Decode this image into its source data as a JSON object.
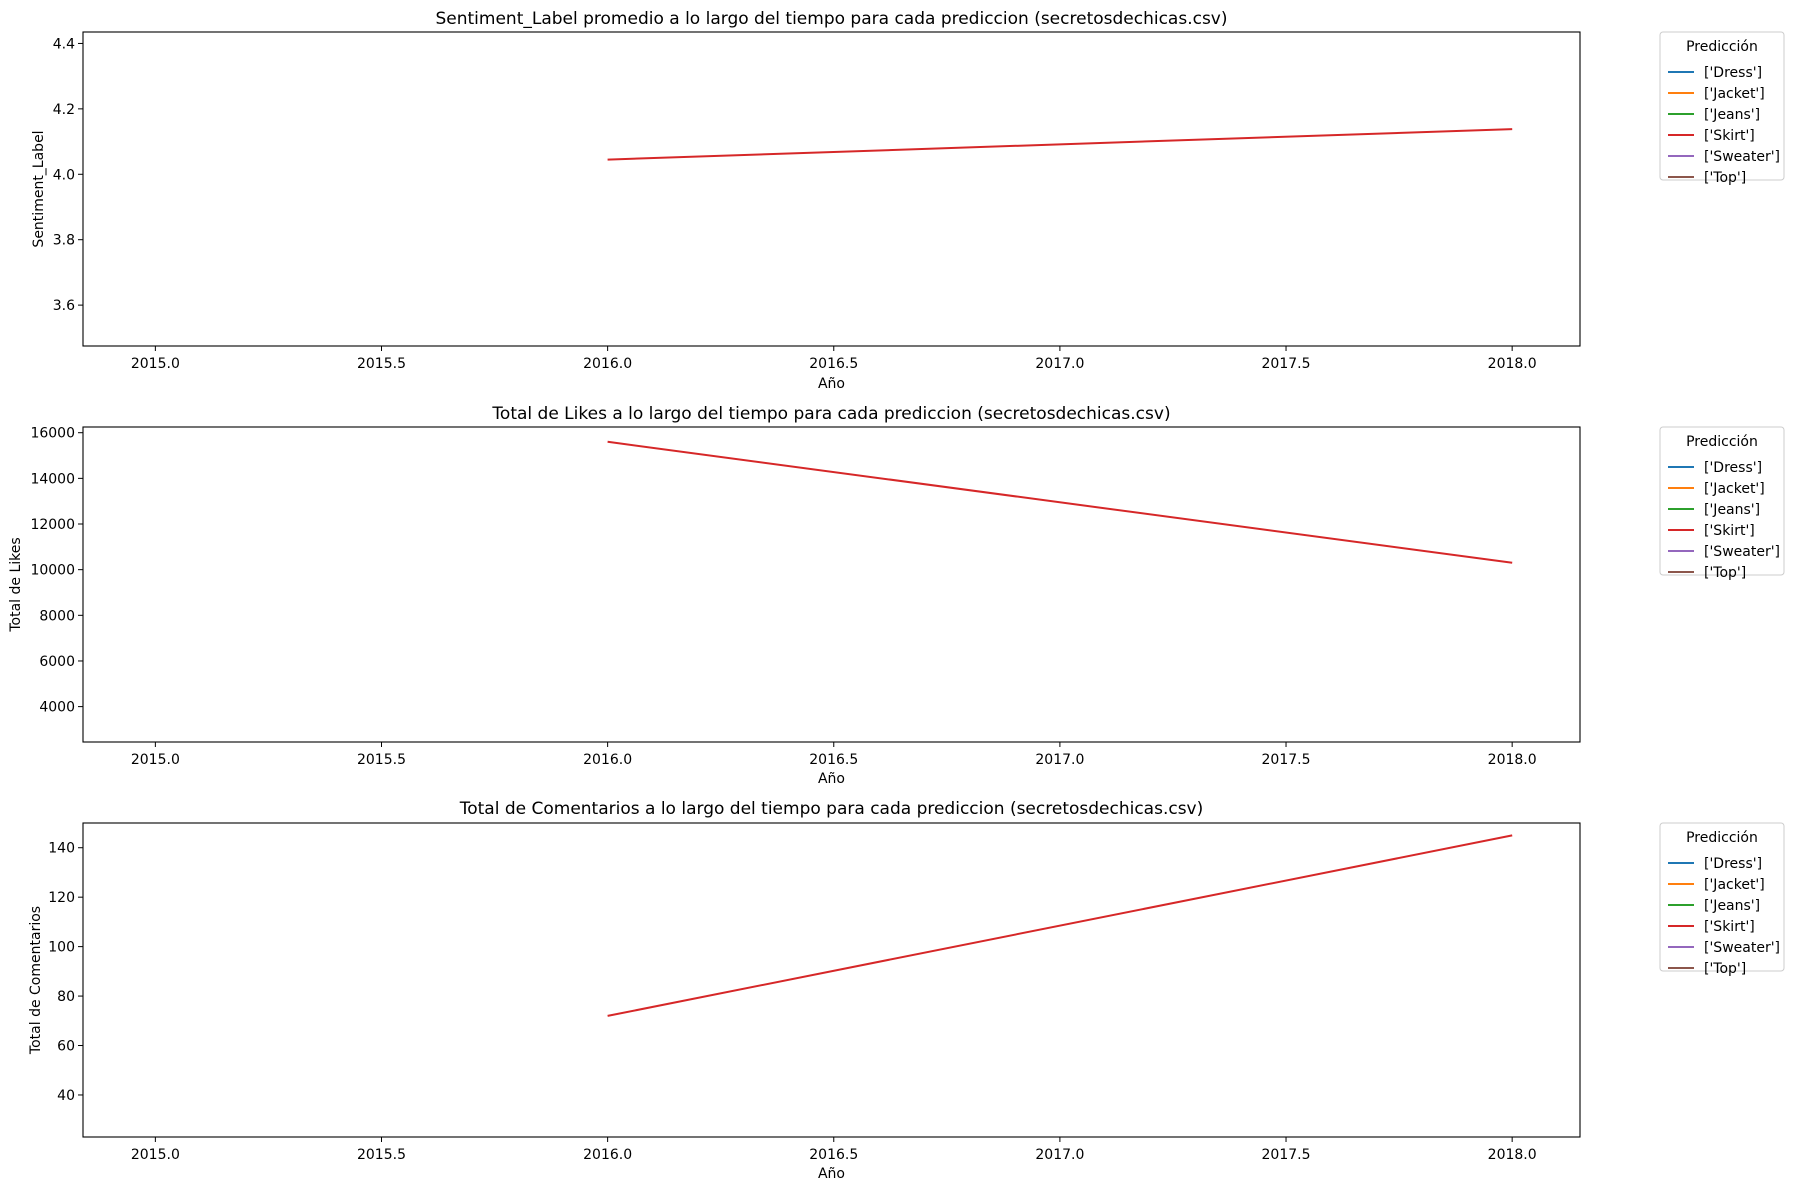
{
  "chart_data": [
    {
      "type": "line",
      "title": "Sentiment_Label promedio a lo largo del tiempo para cada prediccion (secretosdechicas.csv)",
      "xlabel": "Año",
      "ylabel": "Sentiment_Label",
      "xlim": [
        2014.84,
        2018.15
      ],
      "ylim": [
        3.475,
        4.435
      ],
      "xticks": [
        2015.0,
        2015.5,
        2016.0,
        2016.5,
        2017.0,
        2017.5,
        2018.0
      ],
      "xtick_labels": [
        "2015.0",
        "2015.5",
        "2016.0",
        "2016.5",
        "2017.0",
        "2017.5",
        "2018.0"
      ],
      "yticks": [
        3.6,
        3.8,
        4.0,
        4.2,
        4.4
      ],
      "ytick_labels": [
        "3.6",
        "3.8",
        "4.0",
        "4.2",
        "4.4"
      ],
      "legend_title": "Predicción",
      "legend_position": "outside-right-top",
      "grid": false,
      "series": [
        {
          "name": "['Dress']",
          "color": "#1f77b4",
          "x": [],
          "y": []
        },
        {
          "name": "['Jacket']",
          "color": "#ff7f0e",
          "x": [],
          "y": []
        },
        {
          "name": "['Jeans']",
          "color": "#2ca02c",
          "x": [],
          "y": []
        },
        {
          "name": "['Skirt']",
          "color": "#d62728",
          "x": [
            2016,
            2018
          ],
          "y": [
            4.045,
            4.138
          ]
        },
        {
          "name": "['Sweater']",
          "color": "#9467bd",
          "x": [],
          "y": []
        },
        {
          "name": "['Top']",
          "color": "#8c564b",
          "x": [],
          "y": []
        }
      ]
    },
    {
      "type": "line",
      "title": "Total de Likes a lo largo del tiempo para cada prediccion (secretosdechicas.csv)",
      "xlabel": "Año",
      "ylabel": "Total de Likes",
      "xlim": [
        2014.84,
        2018.15
      ],
      "ylim": [
        2450,
        16250
      ],
      "xticks": [
        2015.0,
        2015.5,
        2016.0,
        2016.5,
        2017.0,
        2017.5,
        2018.0
      ],
      "xtick_labels": [
        "2015.0",
        "2015.5",
        "2016.0",
        "2016.5",
        "2017.0",
        "2017.5",
        "2018.0"
      ],
      "yticks": [
        4000,
        6000,
        8000,
        10000,
        12000,
        14000,
        16000
      ],
      "ytick_labels": [
        "4000",
        "6000",
        "8000",
        "10000",
        "12000",
        "14000",
        "16000"
      ],
      "legend_title": "Predicción",
      "legend_position": "outside-right-top",
      "grid": false,
      "series": [
        {
          "name": "['Dress']",
          "color": "#1f77b4",
          "x": [],
          "y": []
        },
        {
          "name": "['Jacket']",
          "color": "#ff7f0e",
          "x": [],
          "y": []
        },
        {
          "name": "['Jeans']",
          "color": "#2ca02c",
          "x": [],
          "y": []
        },
        {
          "name": "['Skirt']",
          "color": "#d62728",
          "x": [
            2016,
            2018
          ],
          "y": [
            15600,
            10300
          ]
        },
        {
          "name": "['Sweater']",
          "color": "#9467bd",
          "x": [],
          "y": []
        },
        {
          "name": "['Top']",
          "color": "#8c564b",
          "x": [],
          "y": []
        }
      ]
    },
    {
      "type": "line",
      "title": "Total de Comentarios a lo largo del tiempo para cada prediccion (secretosdechicas.csv)",
      "xlabel": "Año",
      "ylabel": "Total de Comentarios",
      "xlim": [
        2014.84,
        2018.15
      ],
      "ylim": [
        23,
        150
      ],
      "xticks": [
        2015.0,
        2015.5,
        2016.0,
        2016.5,
        2017.0,
        2017.5,
        2018.0
      ],
      "xtick_labels": [
        "2015.0",
        "2015.5",
        "2016.0",
        "2016.5",
        "2017.0",
        "2017.5",
        "2018.0"
      ],
      "yticks": [
        40,
        60,
        80,
        100,
        120,
        140
      ],
      "ytick_labels": [
        "40",
        "60",
        "80",
        "100",
        "120",
        "140"
      ],
      "legend_title": "Predicción",
      "legend_position": "outside-right-top",
      "grid": false,
      "series": [
        {
          "name": "['Dress']",
          "color": "#1f77b4",
          "x": [],
          "y": []
        },
        {
          "name": "['Jacket']",
          "color": "#ff7f0e",
          "x": [],
          "y": []
        },
        {
          "name": "['Jeans']",
          "color": "#2ca02c",
          "x": [],
          "y": []
        },
        {
          "name": "['Skirt']",
          "color": "#d62728",
          "x": [
            2016,
            2018
          ],
          "y": [
            72,
            145
          ]
        },
        {
          "name": "['Sweater']",
          "color": "#9467bd",
          "x": [],
          "y": []
        },
        {
          "name": "['Top']",
          "color": "#8c564b",
          "x": [],
          "y": []
        }
      ]
    }
  ]
}
